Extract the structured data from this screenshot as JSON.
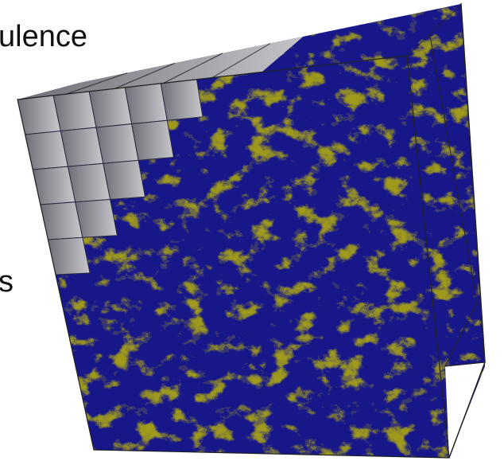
{
  "texts": {
    "top": "ulence",
    "left": "s"
  }
}
